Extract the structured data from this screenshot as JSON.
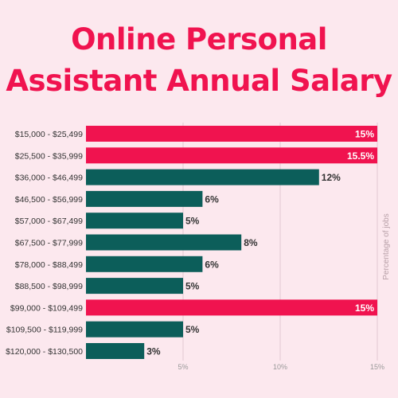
{
  "title_line1": "Online Personal",
  "title_line2": "Assistant Annual Salary",
  "colors": {
    "background": "#fce8ee",
    "accent": "#f0134f",
    "teal": "#0c5e5a"
  },
  "chart_data": {
    "type": "bar",
    "orientation": "horizontal",
    "title": "Online Personal Assistant Annual Salary",
    "ylabel": "Percentage of jobs",
    "categories": [
      "$15,000 - $25,499",
      "$25,500 - $35,999",
      "$36,000 - $46,499",
      "$46,500 - $56,999",
      "$57,000 - $67,499",
      "$67,500 - $77,999",
      "$78,000 - $88,499",
      "$88,500 - $98,999",
      "$99,000 - $109,499",
      "$109,500 - $119,999",
      "$120,000 - $130,500"
    ],
    "values": [
      15,
      15.5,
      12,
      6,
      5,
      8,
      6,
      5,
      15,
      5,
      3
    ],
    "value_labels": [
      "15%",
      "15.5%",
      "12%",
      "6%",
      "5%",
      "8%",
      "6%",
      "5%",
      "15%",
      "5%",
      "3%"
    ],
    "highlight": [
      true,
      true,
      false,
      false,
      false,
      false,
      false,
      false,
      true,
      false,
      false
    ],
    "xticks": [
      5,
      10,
      15
    ],
    "xtick_labels": [
      "5%",
      "10%",
      "15%"
    ],
    "xlim": [
      0,
      15
    ],
    "grid": true
  }
}
